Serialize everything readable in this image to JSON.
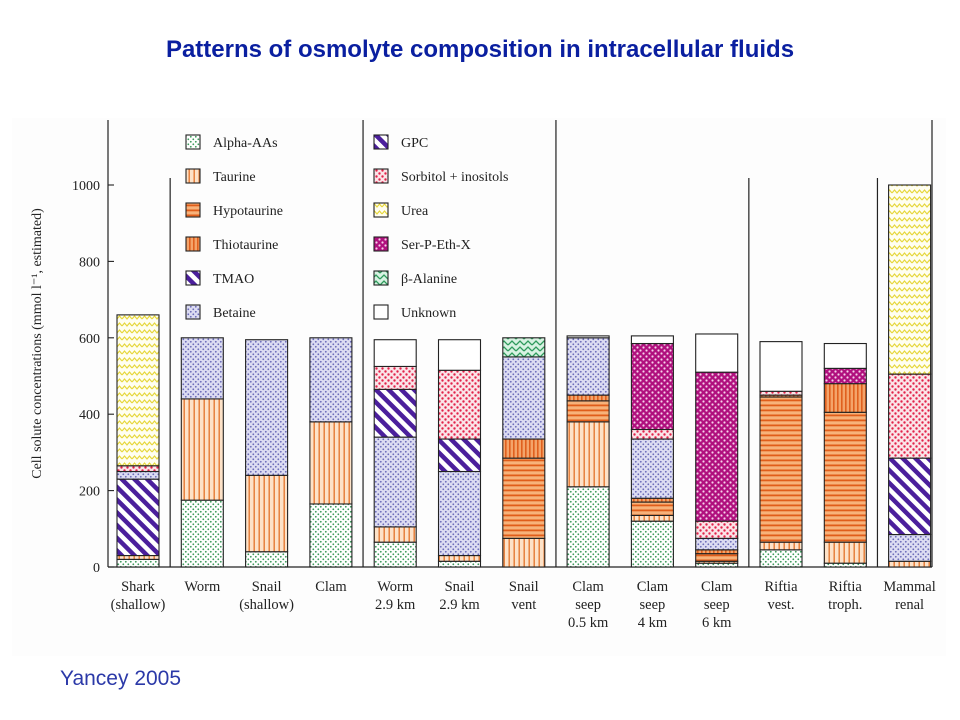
{
  "slide": {
    "title": "Patterns of osmolyte composition in intracellular fluids",
    "citation": "Yancey 2005"
  },
  "colors": {
    "title": "#0a1fa0",
    "citation": "#2b39a8"
  },
  "chart_data": {
    "type": "bar",
    "stacked": true,
    "ylabel": "Cell solute concentrations (mmol l⁻¹, estimated)",
    "ylim": [
      0,
      1000
    ],
    "yticks": [
      0,
      200,
      400,
      600,
      800,
      1000
    ],
    "categories": [
      [
        "Shark",
        "(shallow)"
      ],
      [
        "Worm"
      ],
      [
        "Snail",
        "(shallow)"
      ],
      [
        "Clam"
      ],
      [
        "Worm",
        "2.9 km"
      ],
      [
        "Snail",
        "2.9 km"
      ],
      [
        "Snail",
        "vent"
      ],
      [
        "Clam",
        "seep",
        "0.5 km"
      ],
      [
        "Clam",
        "seep",
        "4 km"
      ],
      [
        "Clam",
        "seep",
        "6 km"
      ],
      [
        "Riftia",
        "vest."
      ],
      [
        "Riftia",
        "troph."
      ],
      [
        "Mammal",
        "renal"
      ]
    ],
    "group_separators_after": [
      0,
      3,
      6,
      9,
      11
    ],
    "series": [
      {
        "name": "Alpha-AAs",
        "pattern": "dots-green",
        "values": [
          20,
          175,
          40,
          165,
          65,
          15,
          0,
          210,
          120,
          10,
          45,
          10,
          0
        ]
      },
      {
        "name": "Taurine",
        "pattern": "vlines-orange",
        "values": [
          10,
          265,
          200,
          215,
          40,
          15,
          75,
          170,
          15,
          5,
          20,
          55,
          15
        ]
      },
      {
        "name": "Hypotaurine",
        "pattern": "hlines-orange",
        "values": [
          0,
          0,
          0,
          0,
          0,
          0,
          210,
          55,
          35,
          20,
          380,
          340,
          0
        ]
      },
      {
        "name": "Thiotaurine",
        "pattern": "vlines-orange2",
        "values": [
          0,
          0,
          0,
          0,
          0,
          0,
          50,
          15,
          10,
          10,
          5,
          75,
          0
        ]
      },
      {
        "name": "TMAO",
        "pattern": "diag-purple",
        "values": [
          200,
          0,
          0,
          0,
          0,
          0,
          0,
          0,
          0,
          0,
          0,
          0,
          0
        ]
      },
      {
        "name": "Betaine",
        "pattern": "dots-blue",
        "values": [
          20,
          160,
          355,
          220,
          235,
          220,
          215,
          150,
          155,
          30,
          0,
          0,
          70
        ]
      },
      {
        "name": "GPC",
        "pattern": "diag-purple",
        "values": [
          0,
          0,
          0,
          0,
          125,
          85,
          0,
          0,
          0,
          0,
          0,
          0,
          200
        ]
      },
      {
        "name": "Sorbitol + inositols",
        "pattern": "dots-red",
        "values": [
          15,
          0,
          0,
          0,
          60,
          180,
          0,
          0,
          25,
          45,
          10,
          0,
          220
        ]
      },
      {
        "name": "Urea",
        "pattern": "zig-yellow",
        "values": [
          395,
          0,
          0,
          0,
          0,
          0,
          0,
          0,
          0,
          0,
          0,
          0,
          495
        ]
      },
      {
        "name": "Ser-P-Eth-X",
        "pattern": "dots-magenta",
        "values": [
          0,
          0,
          0,
          0,
          0,
          0,
          0,
          0,
          225,
          390,
          0,
          40,
          0
        ]
      },
      {
        "name": "β-Alanine",
        "pattern": "chev-teal",
        "values": [
          0,
          0,
          0,
          0,
          0,
          0,
          50,
          0,
          0,
          0,
          0,
          0,
          0
        ]
      },
      {
        "name": "Unknown",
        "pattern": "white",
        "values": [
          0,
          0,
          0,
          0,
          70,
          80,
          0,
          5,
          20,
          100,
          130,
          65,
          0
        ]
      }
    ],
    "legend": {
      "placement": "top",
      "columns": [
        [
          "Alpha-AAs",
          "Taurine",
          "Hypotaurine",
          "Thiotaurine",
          "TMAO",
          "Betaine"
        ],
        [
          "GPC",
          "Sorbitol + inositols",
          "Urea",
          "Ser-P-Eth-X",
          "β-Alanine",
          "Unknown"
        ]
      ]
    }
  }
}
